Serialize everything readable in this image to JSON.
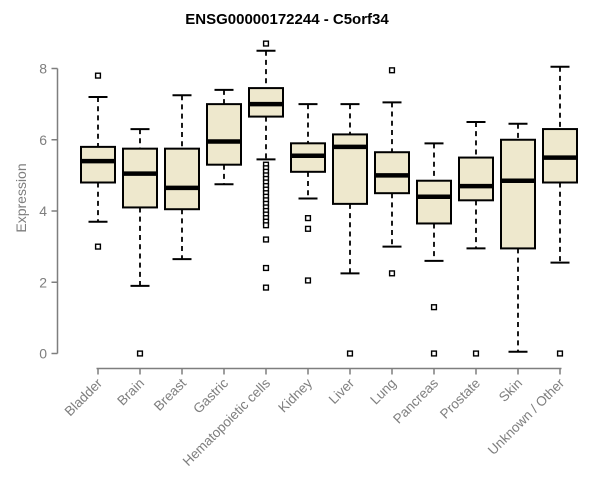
{
  "title": "ENSG00000172244 - C5orf34",
  "colors": {
    "background": "#FFFFFF",
    "box_fill": "#EEE8CD",
    "box_stroke": "#000000",
    "median": "#000000",
    "whisker": "#000000",
    "outlier_stroke": "#000000",
    "axis": "#7E7E7E",
    "title_color": "#000000"
  },
  "chart_data": {
    "type": "boxplot",
    "title": "ENSG00000172244 - C5orf34",
    "xlabel": "",
    "ylabel": "Expression",
    "ylim": [
      0,
      8.8
    ],
    "yticks": [
      0,
      2,
      4,
      6,
      8
    ],
    "grid": false,
    "legend": false,
    "categories": [
      "Bladder",
      "Brain",
      "Breast",
      "Gastric",
      "Hematopoietic cells",
      "Kidney",
      "Liver",
      "Lung",
      "Pancreas",
      "Prostate",
      "Skin",
      "Unknown / Other"
    ],
    "series": [
      {
        "label": "Bladder",
        "whisker_low": 3.7,
        "q1": 4.8,
        "median": 5.4,
        "q3": 5.8,
        "whisker_high": 7.2,
        "outliers": [
          7.8,
          3.0
        ]
      },
      {
        "label": "Brain",
        "whisker_low": 1.9,
        "q1": 4.1,
        "median": 5.05,
        "q3": 5.75,
        "whisker_high": 6.3,
        "outliers": [
          0
        ]
      },
      {
        "label": "Breast",
        "whisker_low": 2.65,
        "q1": 4.05,
        "median": 4.65,
        "q3": 5.75,
        "whisker_high": 7.25,
        "outliers": []
      },
      {
        "label": "Gastric",
        "whisker_low": 4.75,
        "q1": 5.3,
        "median": 5.95,
        "q3": 7.0,
        "whisker_high": 7.4,
        "outliers": []
      },
      {
        "label": "Hematopoietic cells",
        "whisker_low": 5.45,
        "q1": 6.65,
        "median": 7.0,
        "q3": 7.45,
        "whisker_high": 8.5,
        "outliers": [
          8.7,
          5.3,
          5.2,
          5.1,
          5.0,
          4.9,
          4.8,
          4.7,
          4.6,
          4.5,
          4.4,
          4.3,
          4.2,
          4.1,
          4.0,
          3.9,
          3.8,
          3.7,
          3.6,
          3.2,
          2.4,
          1.85
        ]
      },
      {
        "label": "Kidney",
        "whisker_low": 4.35,
        "q1": 5.1,
        "median": 5.55,
        "q3": 5.9,
        "whisker_high": 7.0,
        "outliers": [
          3.8,
          3.5,
          2.05
        ]
      },
      {
        "label": "Liver",
        "whisker_low": 2.25,
        "q1": 4.2,
        "median": 5.8,
        "q3": 6.15,
        "whisker_high": 7.0,
        "outliers": [
          0
        ]
      },
      {
        "label": "Lung",
        "whisker_low": 3.0,
        "q1": 4.5,
        "median": 5.0,
        "q3": 5.65,
        "whisker_high": 7.05,
        "outliers": [
          7.95,
          2.25
        ]
      },
      {
        "label": "Pancreas",
        "whisker_low": 2.6,
        "q1": 3.65,
        "median": 4.4,
        "q3": 4.85,
        "whisker_high": 5.9,
        "outliers": [
          1.3,
          0
        ]
      },
      {
        "label": "Prostate",
        "whisker_low": 2.95,
        "q1": 4.3,
        "median": 4.7,
        "q3": 5.5,
        "whisker_high": 6.5,
        "outliers": [
          0
        ]
      },
      {
        "label": "Skin",
        "whisker_low": 0.05,
        "q1": 2.95,
        "median": 4.85,
        "q3": 6.0,
        "whisker_high": 6.45,
        "outliers": []
      },
      {
        "label": "Unknown / Other",
        "whisker_low": 2.55,
        "q1": 4.8,
        "median": 5.5,
        "q3": 6.3,
        "whisker_high": 8.05,
        "outliers": [
          0
        ]
      }
    ]
  }
}
